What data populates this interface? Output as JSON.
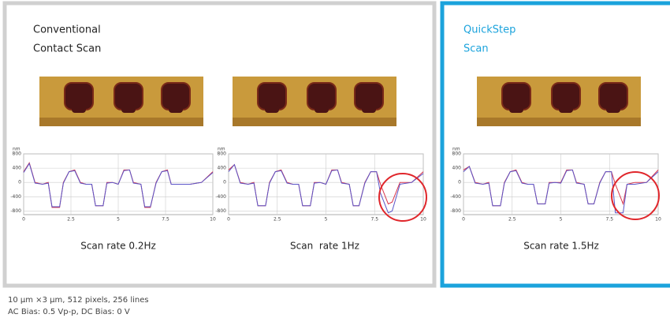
{
  "groups": [
    {
      "label": [
        "Conventional",
        "Contact Scan"
      ]
    },
    {
      "label": [
        "QuickStep",
        "Scan"
      ]
    }
  ],
  "footer": [
    "10 µm ×3 µm, 512 pixels, 256 lines",
    "AC Bias:  0.5 Vp-p, DC Bias:  0 V"
  ],
  "chart_data": [
    {
      "type": "line",
      "title": "Scan rate 0.2Hz",
      "ylabel": "nm",
      "x": [
        0,
        0.3,
        0.6,
        1.0,
        1.3,
        1.5,
        1.9,
        2.1,
        2.4,
        2.7,
        3.0,
        3.3,
        3.6,
        3.8,
        4.2,
        4.4,
        4.7,
        5.0,
        5.3,
        5.6,
        5.8,
        6.2,
        6.4,
        6.7,
        7.0,
        7.3,
        7.6,
        7.8,
        8.2,
        8.4,
        8.8,
        9.4,
        10
      ],
      "series": [
        {
          "color": "#d8344a",
          "values": [
            300,
            550,
            0,
            -50,
            0,
            -700,
            -700,
            0,
            300,
            350,
            0,
            -50,
            -50,
            -650,
            -650,
            0,
            0,
            -50,
            350,
            350,
            0,
            -50,
            -700,
            -700,
            0,
            300,
            350,
            -50,
            -50,
            -50,
            -50,
            0,
            300
          ]
        },
        {
          "color": "#5a55c8",
          "values": [
            280,
            530,
            -20,
            -50,
            -20,
            -680,
            -680,
            -20,
            300,
            330,
            -20,
            -50,
            -50,
            -650,
            -650,
            -20,
            0,
            -50,
            330,
            350,
            -20,
            -50,
            -680,
            -680,
            -20,
            300,
            330,
            -50,
            -50,
            -50,
            -50,
            0,
            280
          ]
        }
      ],
      "xlim": [
        0,
        10
      ],
      "xticks": [
        0,
        2.5,
        5,
        7.5,
        10
      ],
      "ylim": [
        -900,
        800
      ],
      "yticks": [
        800,
        400,
        0,
        -400,
        -800
      ],
      "grid": true
    },
    {
      "type": "line",
      "title": "Scan  rate 1Hz",
      "ylabel": "nm",
      "x": [
        0,
        0.3,
        0.6,
        1.0,
        1.3,
        1.5,
        1.9,
        2.1,
        2.4,
        2.7,
        3.0,
        3.3,
        3.6,
        3.8,
        4.2,
        4.4,
        4.7,
        5.0,
        5.3,
        5.6,
        5.8,
        6.2,
        6.4,
        6.7,
        7.0,
        7.3,
        7.6,
        7.8,
        8.2,
        8.4,
        8.8,
        9.4,
        10
      ],
      "series": [
        {
          "color": "#d8344a",
          "values": [
            350,
            500,
            0,
            -50,
            0,
            -650,
            -650,
            0,
            300,
            350,
            0,
            -50,
            -50,
            -650,
            -650,
            0,
            0,
            -50,
            350,
            350,
            0,
            -50,
            -650,
            -650,
            0,
            300,
            300,
            -50,
            -600,
            -550,
            0,
            0,
            300
          ]
        },
        {
          "color": "#5a55c8",
          "values": [
            300,
            500,
            -20,
            -50,
            -20,
            -650,
            -650,
            -20,
            300,
            330,
            -20,
            -50,
            -50,
            -650,
            -650,
            -20,
            0,
            -50,
            330,
            350,
            -20,
            -50,
            -650,
            -650,
            -20,
            300,
            300,
            -300,
            -850,
            -800,
            -50,
            0,
            250
          ]
        }
      ],
      "xlim": [
        0,
        10
      ],
      "xticks": [
        0,
        2.5,
        5,
        7.5,
        10
      ],
      "ylim": [
        -900,
        800
      ],
      "yticks": [
        800,
        400,
        0,
        -400,
        -800
      ],
      "grid": true
    },
    {
      "type": "line",
      "title": "Scan rate 1.5Hz",
      "ylabel": "nm",
      "x": [
        0,
        0.3,
        0.6,
        1.0,
        1.3,
        1.5,
        1.9,
        2.1,
        2.4,
        2.7,
        3.0,
        3.3,
        3.6,
        3.8,
        4.2,
        4.4,
        4.7,
        5.0,
        5.3,
        5.6,
        5.8,
        6.2,
        6.4,
        6.7,
        7.0,
        7.3,
        7.6,
        7.8,
        8.2,
        8.4,
        8.8,
        9.4,
        10
      ],
      "series": [
        {
          "color": "#d8344a",
          "values": [
            350,
            450,
            0,
            -50,
            0,
            -650,
            -650,
            0,
            300,
            350,
            0,
            -50,
            -50,
            -600,
            -600,
            0,
            0,
            0,
            350,
            350,
            0,
            -50,
            -600,
            -600,
            0,
            300,
            300,
            -50,
            -600,
            -50,
            0,
            0,
            350
          ]
        },
        {
          "color": "#5a55c8",
          "values": [
            300,
            450,
            -20,
            -50,
            -20,
            -650,
            -650,
            -20,
            300,
            330,
            -20,
            -50,
            -50,
            -600,
            -600,
            -20,
            0,
            -20,
            330,
            350,
            -20,
            -50,
            -600,
            -600,
            -20,
            300,
            300,
            -850,
            -850,
            -50,
            -50,
            0,
            300
          ]
        }
      ],
      "xlim": [
        0,
        10
      ],
      "xticks": [
        0,
        2.5,
        5,
        7.5,
        10
      ],
      "ylim": [
        -900,
        800
      ],
      "yticks": [
        800,
        400,
        0,
        -400,
        -800
      ],
      "grid": true
    }
  ]
}
